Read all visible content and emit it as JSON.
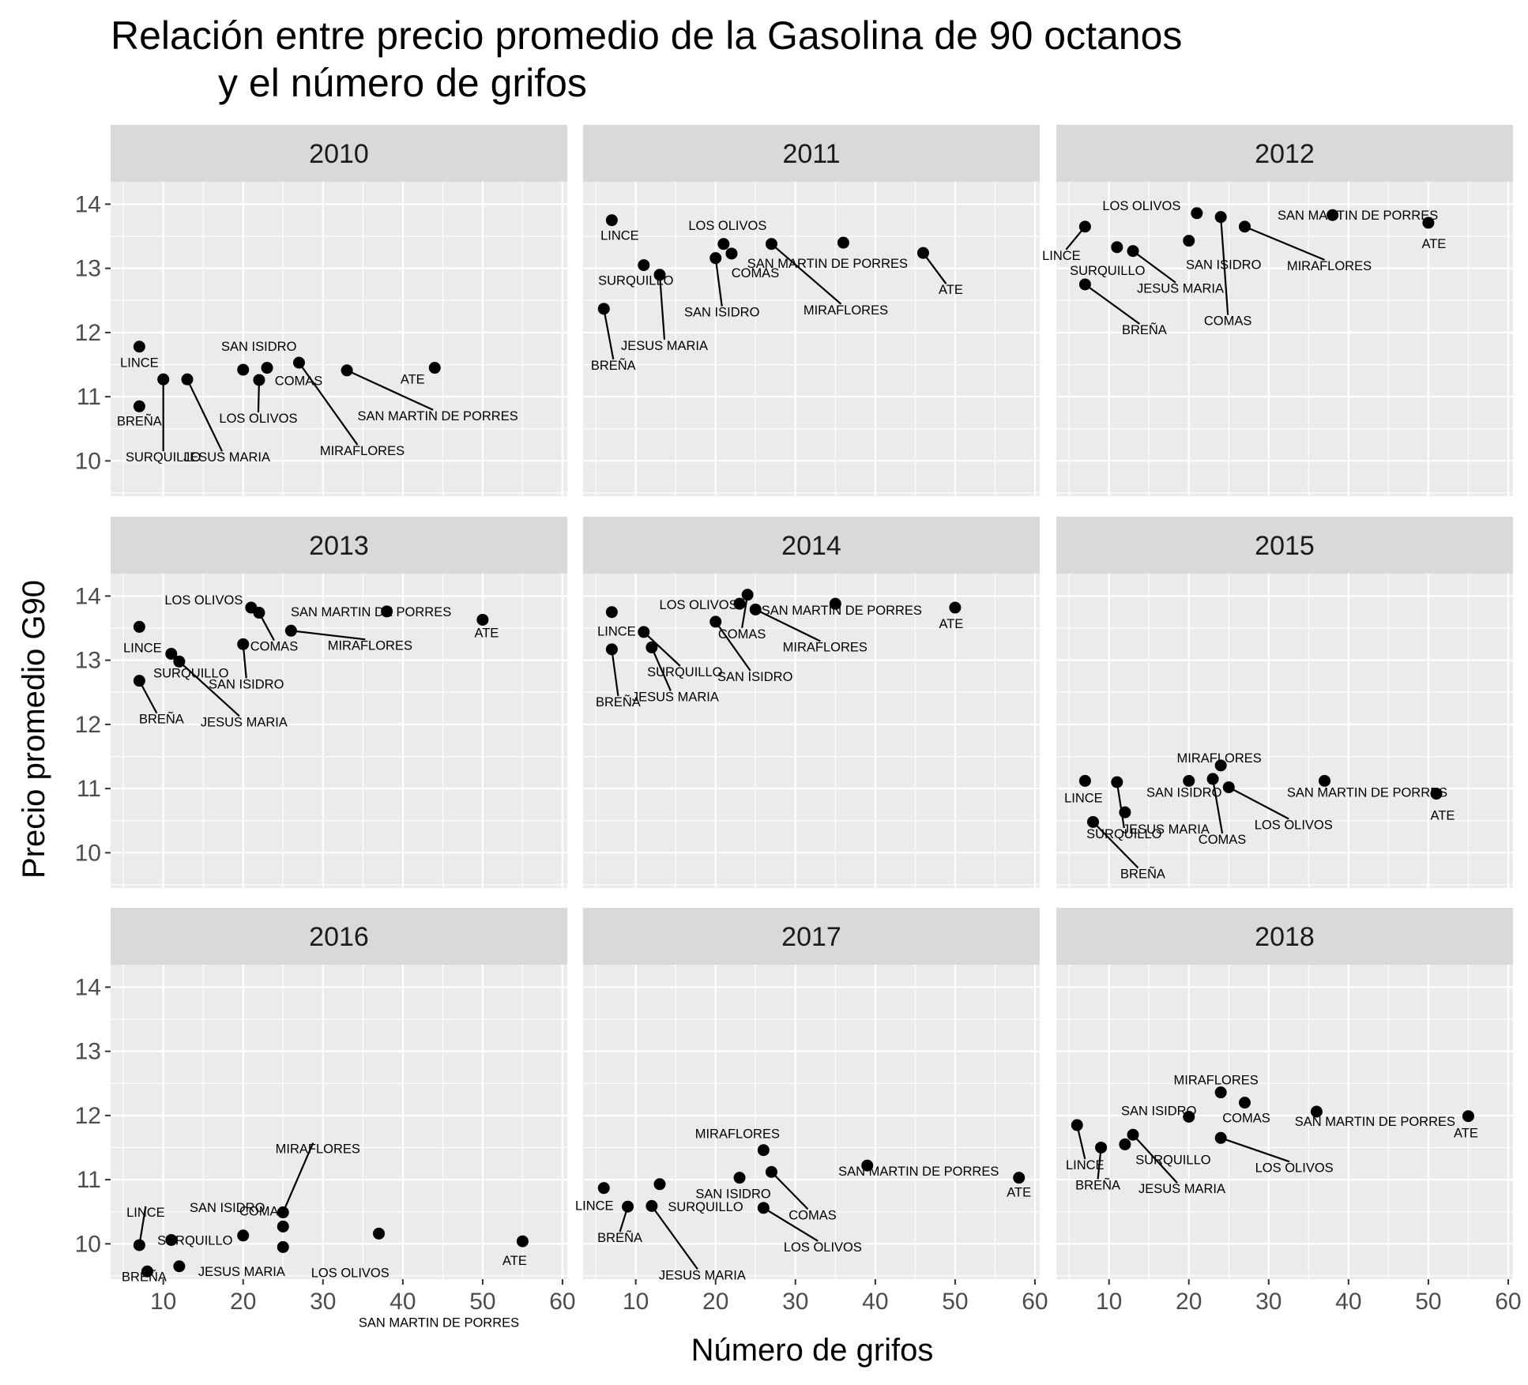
{
  "title_line1": "Relación entre precio promedio de la Gasolina de 90 octanos",
  "title_line2": "y el número de grifos",
  "xlabel": "Número de grifos",
  "ylabel": "Precio promedio G90",
  "chart_data": {
    "type": "scatter",
    "facet_by": "year",
    "x_ticks": [
      10,
      20,
      30,
      40,
      50,
      60
    ],
    "y_ticks": [
      10,
      11,
      12,
      13,
      14
    ],
    "xlim": [
      3.4,
      60.6
    ],
    "ylim": [
      9.45,
      14.35
    ],
    "grid": true,
    "panels": [
      {
        "year": "2010",
        "points": [
          {
            "label": "LINCE",
            "x": 7,
            "y": 11.78
          },
          {
            "label": "BREÑA",
            "x": 7,
            "y": 10.85
          },
          {
            "label": "SURQUILLO",
            "x": 10,
            "y": 11.27
          },
          {
            "label": "JESUS MARIA",
            "x": 13,
            "y": 11.27
          },
          {
            "label": "SAN ISIDRO",
            "x": 20,
            "y": 11.42
          },
          {
            "label": "LOS OLIVOS",
            "x": 22,
            "y": 11.26
          },
          {
            "label": "COMAS",
            "x": 23,
            "y": 11.45
          },
          {
            "label": "MIRAFLORES",
            "x": 27,
            "y": 11.53
          },
          {
            "label": "SAN MARTIN DE PORRES",
            "x": 33,
            "y": 11.41
          },
          {
            "label": "ATE",
            "x": 44,
            "y": 11.45
          }
        ]
      },
      {
        "year": "2011",
        "points": [
          {
            "label": "LINCE",
            "x": 7,
            "y": 13.75
          },
          {
            "label": "BREÑA",
            "x": 6,
            "y": 12.37
          },
          {
            "label": "SURQUILLO",
            "x": 11,
            "y": 13.05
          },
          {
            "label": "JESUS MARIA",
            "x": 13,
            "y": 12.9
          },
          {
            "label": "SAN ISIDRO",
            "x": 20,
            "y": 13.16
          },
          {
            "label": "LOS OLIVOS",
            "x": 21,
            "y": 13.38
          },
          {
            "label": "COMAS",
            "x": 22,
            "y": 13.23
          },
          {
            "label": "MIRAFLORES",
            "x": 27,
            "y": 13.38
          },
          {
            "label": "SAN MARTIN DE PORRES",
            "x": 36,
            "y": 13.4
          },
          {
            "label": "ATE",
            "x": 46,
            "y": 13.24
          }
        ]
      },
      {
        "year": "2012",
        "points": [
          {
            "label": "LINCE",
            "x": 7,
            "y": 13.65
          },
          {
            "label": "SURQUILLO",
            "x": 11,
            "y": 13.33
          },
          {
            "label": "BREÑA",
            "x": 7,
            "y": 12.75
          },
          {
            "label": "JESUS MARIA",
            "x": 13,
            "y": 13.27
          },
          {
            "label": "SAN ISIDRO",
            "x": 20,
            "y": 13.43
          },
          {
            "label": "LOS OLIVOS",
            "x": 21,
            "y": 13.86
          },
          {
            "label": "COMAS",
            "x": 24,
            "y": 13.8
          },
          {
            "label": "MIRAFLORES",
            "x": 27,
            "y": 13.65
          },
          {
            "label": "SAN MARTIN DE PORRES",
            "x": 38,
            "y": 13.83
          },
          {
            "label": "ATE",
            "x": 50,
            "y": 13.71
          }
        ]
      },
      {
        "year": "2013",
        "points": [
          {
            "label": "LINCE",
            "x": 7,
            "y": 13.52
          },
          {
            "label": "SURQUILLO",
            "x": 11,
            "y": 13.1
          },
          {
            "label": "BREÑA",
            "x": 7,
            "y": 12.68
          },
          {
            "label": "JESUS MARIA",
            "x": 12,
            "y": 12.98
          },
          {
            "label": "SAN ISIDRO",
            "x": 20,
            "y": 13.25
          },
          {
            "label": "LOS OLIVOS",
            "x": 21,
            "y": 13.82
          },
          {
            "label": "COMAS",
            "x": 22,
            "y": 13.74
          },
          {
            "label": "MIRAFLORES",
            "x": 26,
            "y": 13.46
          },
          {
            "label": "SAN MARTIN DE PORRES",
            "x": 38,
            "y": 13.76
          },
          {
            "label": "ATE",
            "x": 50,
            "y": 13.63
          }
        ]
      },
      {
        "year": "2014",
        "points": [
          {
            "label": "LINCE",
            "x": 7,
            "y": 13.75
          },
          {
            "label": "BREÑA",
            "x": 7,
            "y": 13.17
          },
          {
            "label": "SURQUILLO",
            "x": 11,
            "y": 13.44
          },
          {
            "label": "JESUS MARIA",
            "x": 12,
            "y": 13.2
          },
          {
            "label": "SAN ISIDRO",
            "x": 20,
            "y": 13.6
          },
          {
            "label": "LOS OLIVOS",
            "x": 23,
            "y": 13.88
          },
          {
            "label": "COMAS",
            "x": 24,
            "y": 14.02
          },
          {
            "label": "MIRAFLORES",
            "x": 25,
            "y": 13.79
          },
          {
            "label": "SAN MARTIN DE PORRES",
            "x": 35,
            "y": 13.88
          },
          {
            "label": "ATE",
            "x": 50,
            "y": 13.82
          }
        ]
      },
      {
        "year": "2015",
        "points": [
          {
            "label": "LINCE",
            "x": 7,
            "y": 11.12
          },
          {
            "label": "SURQUILLO",
            "x": 11,
            "y": 11.1
          },
          {
            "label": "BREÑA",
            "x": 8,
            "y": 10.48
          },
          {
            "label": "JESUS MARIA",
            "x": 12,
            "y": 10.63
          },
          {
            "label": "SAN ISIDRO",
            "x": 20,
            "y": 11.12
          },
          {
            "label": "COMAS",
            "x": 23,
            "y": 11.15
          },
          {
            "label": "MIRAFLORES",
            "x": 24,
            "y": 11.36
          },
          {
            "label": "LOS OLIVOS",
            "x": 25,
            "y": 11.02
          },
          {
            "label": "SAN MARTIN DE PORRES",
            "x": 37,
            "y": 11.12
          },
          {
            "label": "ATE",
            "x": 51,
            "y": 10.92
          }
        ]
      },
      {
        "year": "2016",
        "points": [
          {
            "label": "LINCE",
            "x": 7,
            "y": 9.98
          },
          {
            "label": "BREÑA",
            "x": 8,
            "y": 9.57
          },
          {
            "label": "SURQUILLO",
            "x": 11,
            "y": 10.06
          },
          {
            "label": "JESUS MARIA",
            "x": 12,
            "y": 9.65
          },
          {
            "label": "SAN ISIDRO",
            "x": 20,
            "y": 10.13
          },
          {
            "label": "COMAS",
            "x": 25,
            "y": 10.27
          },
          {
            "label": "MIRAFLORES",
            "x": 25,
            "y": 10.49
          },
          {
            "label": "LOS OLIVOS",
            "x": 25,
            "y": 9.95
          },
          {
            "label": "SAN MARTIN DE PORRES",
            "x": 37,
            "y": 10.16
          },
          {
            "label": "ATE",
            "x": 55,
            "y": 10.04
          }
        ]
      },
      {
        "year": "2017",
        "points": [
          {
            "label": "LINCE",
            "x": 6,
            "y": 10.87
          },
          {
            "label": "BREÑA",
            "x": 9,
            "y": 10.58
          },
          {
            "label": "SURQUILLO",
            "x": 13,
            "y": 10.93
          },
          {
            "label": "JESUS MARIA",
            "x": 12,
            "y": 10.59
          },
          {
            "label": "SAN ISIDRO",
            "x": 23,
            "y": 11.03
          },
          {
            "label": "MIRAFLORES",
            "x": 26,
            "y": 11.46
          },
          {
            "label": "COMAS",
            "x": 27,
            "y": 11.12
          },
          {
            "label": "LOS OLIVOS",
            "x": 26,
            "y": 10.56
          },
          {
            "label": "SAN MARTIN DE PORRES",
            "x": 39,
            "y": 11.22
          },
          {
            "label": "ATE",
            "x": 58,
            "y": 11.03
          }
        ]
      },
      {
        "year": "2018",
        "points": [
          {
            "label": "LINCE",
            "x": 6,
            "y": 11.85
          },
          {
            "label": "BREÑA",
            "x": 9,
            "y": 11.5
          },
          {
            "label": "SURQUILLO",
            "x": 12,
            "y": 11.55
          },
          {
            "label": "JESUS MARIA",
            "x": 13,
            "y": 11.7
          },
          {
            "label": "SAN ISIDRO",
            "x": 20,
            "y": 11.98
          },
          {
            "label": "MIRAFLORES",
            "x": 24,
            "y": 12.36
          },
          {
            "label": "COMAS",
            "x": 27,
            "y": 12.2
          },
          {
            "label": "LOS OLIVOS",
            "x": 24,
            "y": 11.65
          },
          {
            "label": "SAN MARTIN DE PORRES",
            "x": 36,
            "y": 12.06
          },
          {
            "label": "ATE",
            "x": 55,
            "y": 11.99
          }
        ]
      }
    ]
  }
}
